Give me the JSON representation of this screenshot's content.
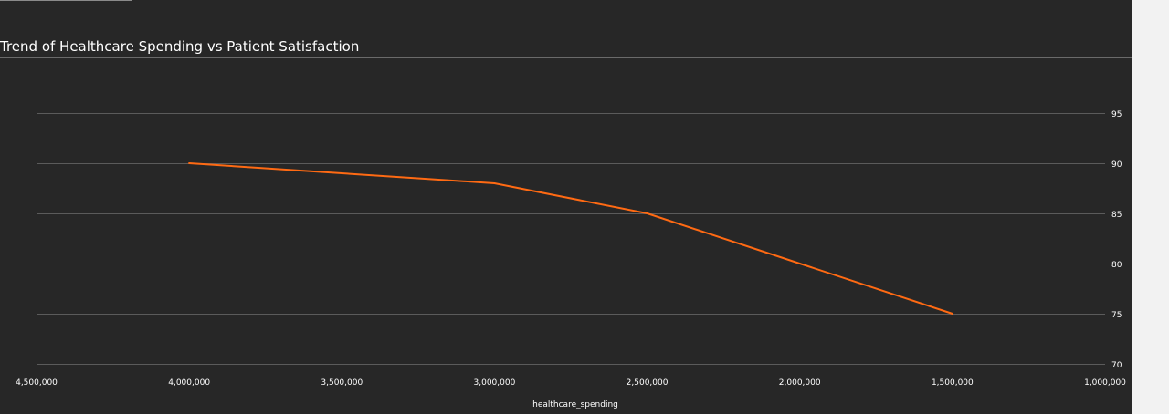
{
  "chart_data": {
    "type": "line",
    "title": "Trend of Healthcare Spending vs Patient Satisfaction",
    "xlabel": "healthcare_spending",
    "ylabel": "",
    "x_reversed": true,
    "xlim": [
      4500000,
      1000000
    ],
    "ylim": [
      70,
      95
    ],
    "x_ticks": [
      4500000,
      4000000,
      3500000,
      3000000,
      2500000,
      2000000,
      1500000,
      1000000
    ],
    "x_tick_labels": [
      "4,500,000",
      "4,000,000",
      "3,500,000",
      "3,000,000",
      "2,500,000",
      "2,000,000",
      "1,500,000",
      "1,000,000"
    ],
    "y_ticks": [
      70,
      75,
      80,
      85,
      90,
      95
    ],
    "y_tick_labels": [
      "70",
      "75",
      "80",
      "85",
      "90",
      "95"
    ],
    "y_axis_side": "right",
    "grid": "horizontal",
    "series": [
      {
        "color": "#ff6a13",
        "points": [
          {
            "x": 4000000,
            "y": 90
          },
          {
            "x": 3000000,
            "y": 88
          },
          {
            "x": 2500000,
            "y": 85
          },
          {
            "x": 2000000,
            "y": 80
          },
          {
            "x": 1500000,
            "y": 75
          }
        ]
      }
    ]
  }
}
